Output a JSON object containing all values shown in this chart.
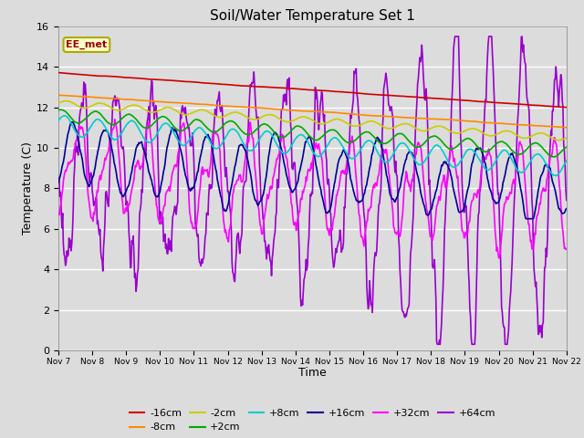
{
  "title": "Soil/Water Temperature Set 1",
  "xlabel": "Time",
  "ylabel": "Temperature (C)",
  "ylim": [
    0,
    16
  ],
  "xlim": [
    0,
    360
  ],
  "background_color": "#dcdcdc",
  "annotation_text": "EE_met",
  "annotation_bg": "#ffffcc",
  "annotation_border": "#aaaa00",
  "x_ticks": [
    0,
    24,
    48,
    72,
    96,
    120,
    144,
    168,
    192,
    216,
    240,
    264,
    288,
    312,
    336,
    360
  ],
  "x_tick_labels": [
    "Nov 7",
    "Nov 8",
    "Nov 9",
    "Nov 10",
    "Nov 11",
    "Nov 12",
    "Nov 13",
    "Nov 14",
    "Nov 15",
    "Nov 16",
    "Nov 17",
    "Nov 18",
    "Nov 19",
    "Nov 20",
    "Nov 21",
    "Nov 22"
  ],
  "series": {
    "-16cm": {
      "color": "#cc0000",
      "linewidth": 1.2
    },
    "-8cm": {
      "color": "#ff8800",
      "linewidth": 1.2
    },
    "-2cm": {
      "color": "#cccc00",
      "linewidth": 1.2
    },
    "+2cm": {
      "color": "#00aa00",
      "linewidth": 1.2
    },
    "+8cm": {
      "color": "#00cccc",
      "linewidth": 1.2
    },
    "+16cm": {
      "color": "#000099",
      "linewidth": 1.2
    },
    "+32cm": {
      "color": "#ff00ff",
      "linewidth": 1.2
    },
    "+64cm": {
      "color": "#9900cc",
      "linewidth": 1.2
    }
  },
  "legend_row1": [
    "-16cm",
    "-8cm",
    "-2cm",
    "+2cm",
    "+8cm",
    "+16cm"
  ],
  "legend_row2": [
    "+32cm",
    "+64cm"
  ]
}
